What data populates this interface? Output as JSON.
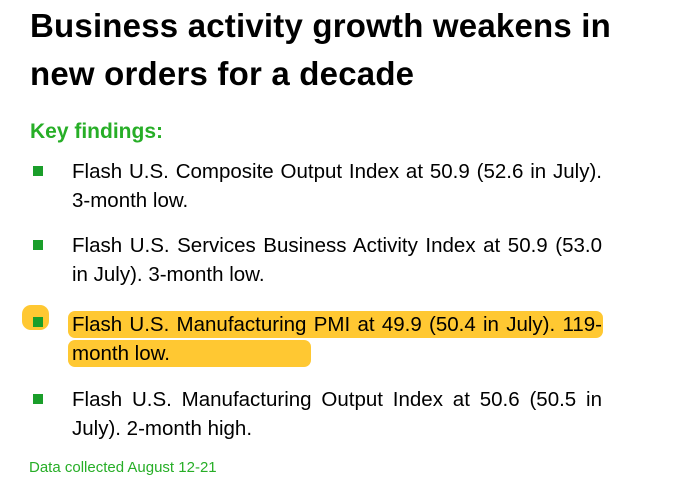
{
  "title": "Business activity growth weakens in new orders for a decade",
  "key_findings_heading": "Key findings:",
  "findings": [
    {
      "text": "Flash U.S. Composite Output Index at 50.9 (52.6 in July). 3-month low.",
      "highlighted": false
    },
    {
      "text": "Flash U.S. Services Business Activity Index at 50.9 (53.0 in July). 3-month low.",
      "highlighted": false
    },
    {
      "text": "Flash U.S. Manufacturing PMI at 49.9 (50.4 in July). 119-month low.",
      "highlighted": true
    },
    {
      "text": "Flash U.S. Manufacturing Output Index at 50.6 (50.5 in July). 2-month high.",
      "highlighted": false
    }
  ],
  "footer": "Data collected August 12-21",
  "colors": {
    "accent_green": "#27ae27",
    "bullet_green": "#1a9e2a",
    "highlight_yellow": "#ffc832"
  }
}
